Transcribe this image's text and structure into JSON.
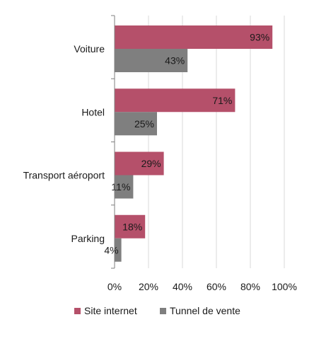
{
  "chart_data": {
    "type": "bar",
    "orientation": "horizontal",
    "categories": [
      "Voiture",
      "Hotel",
      "Transport aéroport",
      "Parking"
    ],
    "series": [
      {
        "name": "Site internet",
        "values": [
          93,
          71,
          29,
          18
        ],
        "labels": [
          "93%",
          "71%",
          "29%",
          "18%"
        ],
        "color": "#B5506A"
      },
      {
        "name": "Tunnel de vente",
        "values": [
          43,
          25,
          11,
          4
        ],
        "labels": [
          "43%",
          "25%",
          "11%",
          "4%"
        ],
        "color": "#7F7F7F"
      }
    ],
    "x_ticks": [
      "0%",
      "20%",
      "40%",
      "60%",
      "80%",
      "100%"
    ],
    "xlim": [
      0,
      100
    ],
    "grid": true,
    "legend_position": "bottom",
    "title": "",
    "xlabel": "",
    "ylabel": ""
  }
}
